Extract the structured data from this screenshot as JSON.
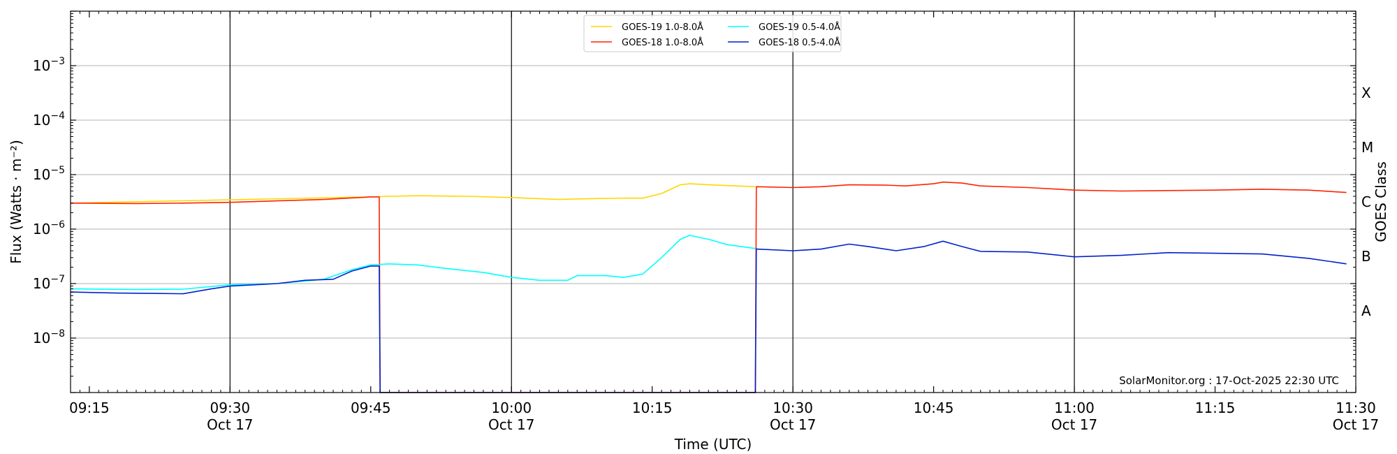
{
  "chart_data": {
    "type": "line",
    "xlabel": "Time (UTC)",
    "ylabel": "Flux (Watts · m⁻²)",
    "ylabel_right": "GOES Class",
    "y_scale": "log",
    "ylim": [
      1e-09,
      0.01
    ],
    "xlim": [
      "09:13",
      "11:30"
    ],
    "grid": "horizontal lines at decades; vertical lines at half hours",
    "legend_position": "top-center",
    "credit": "SolarMonitor.org : 17-Oct-2025 22:30 UTC",
    "y_ticks": [
      {
        "value": 1e-08,
        "base": "10",
        "exp": "−8"
      },
      {
        "value": 1e-07,
        "base": "10",
        "exp": "−7"
      },
      {
        "value": 1e-06,
        "base": "10",
        "exp": "−6"
      },
      {
        "value": 1e-05,
        "base": "10",
        "exp": "−5"
      },
      {
        "value": 0.0001,
        "base": "10",
        "exp": "−4"
      },
      {
        "value": 0.001,
        "base": "10",
        "exp": "−3"
      }
    ],
    "x_ticks": [
      {
        "time": "09:15",
        "label": "09:15",
        "date": ""
      },
      {
        "time": "09:30",
        "label": "09:30",
        "date": "Oct 17"
      },
      {
        "time": "09:45",
        "label": "09:45",
        "date": ""
      },
      {
        "time": "10:00",
        "label": "10:00",
        "date": "Oct 17"
      },
      {
        "time": "10:15",
        "label": "10:15",
        "date": ""
      },
      {
        "time": "10:30",
        "label": "10:30",
        "date": "Oct 17"
      },
      {
        "time": "10:45",
        "label": "10:45",
        "date": ""
      },
      {
        "time": "11:00",
        "label": "11:00",
        "date": "Oct 17"
      },
      {
        "time": "11:15",
        "label": "11:15",
        "date": ""
      },
      {
        "time": "11:30",
        "label": "11:30",
        "date": "Oct 17"
      }
    ],
    "vertical_lines": [
      "09:30",
      "10:00",
      "10:30",
      "11:00"
    ],
    "goes_classes": [
      {
        "label": "X",
        "value": 0.000316
      },
      {
        "label": "M",
        "value": 3.16e-05
      },
      {
        "label": "C",
        "value": 3.16e-06
      },
      {
        "label": "B",
        "value": 3.16e-07
      },
      {
        "label": "A",
        "value": 3.16e-08
      }
    ],
    "series": [
      {
        "name": "GOES-19 1.0-8.0Å",
        "color": "#ffd700",
        "points": [
          [
            "09:13",
            3e-06
          ],
          [
            "09:45",
            3.9e-06
          ],
          [
            "09:47",
            4e-06
          ],
          [
            "09:50",
            4.1e-06
          ],
          [
            "09:55",
            4e-06
          ],
          [
            "10:00",
            3.8e-06
          ],
          [
            "10:05",
            3.5e-06
          ],
          [
            "10:08",
            3.6e-06
          ],
          [
            "10:12",
            3.7e-06
          ],
          [
            "10:14",
            3.7e-06
          ],
          [
            "10:16",
            4.5e-06
          ],
          [
            "10:18",
            6.5e-06
          ],
          [
            "10:19",
            6.8e-06
          ],
          [
            "10:22",
            6.4e-06
          ],
          [
            "10:26",
            6e-06
          ]
        ]
      },
      {
        "name": "GOES-18 1.0-8.0Å",
        "color": "#ff2200",
        "points": [
          [
            "09:13",
            3e-06
          ],
          [
            "09:20",
            2.95e-06
          ],
          [
            "09:25",
            3e-06
          ],
          [
            "09:30",
            3.1e-06
          ],
          [
            "09:35",
            3.3e-06
          ],
          [
            "09:40",
            3.5e-06
          ],
          [
            "09:45",
            3.9e-06
          ],
          [
            "09:45.9",
            3.9e-06
          ],
          [
            "09:46",
            1e-09
          ],
          [
            "10:26",
            1e-09
          ],
          [
            "10:26.1",
            6e-06
          ],
          [
            "10:30",
            5.8e-06
          ],
          [
            "10:33",
            6e-06
          ],
          [
            "10:36",
            6.5e-06
          ],
          [
            "10:40",
            6.4e-06
          ],
          [
            "10:42",
            6.2e-06
          ],
          [
            "10:45",
            6.8e-06
          ],
          [
            "10:46",
            7.3e-06
          ],
          [
            "10:48",
            7e-06
          ],
          [
            "10:50",
            6.2e-06
          ],
          [
            "10:55",
            5.8e-06
          ],
          [
            "11:00",
            5.2e-06
          ],
          [
            "11:05",
            5e-06
          ],
          [
            "11:10",
            5.1e-06
          ],
          [
            "11:15",
            5.2e-06
          ],
          [
            "11:20",
            5.4e-06
          ],
          [
            "11:25",
            5.2e-06
          ],
          [
            "11:29",
            4.7e-06
          ]
        ]
      },
      {
        "name": "GOES-19 0.5-4.0Å",
        "color": "#00ffff",
        "points": [
          [
            "09:13",
            8e-08
          ],
          [
            "09:20",
            7.8e-08
          ],
          [
            "09:25",
            7.9e-08
          ],
          [
            "09:30",
            9.5e-08
          ],
          [
            "09:35",
            1e-07
          ],
          [
            "09:40",
            1.2e-07
          ],
          [
            "09:43",
            1.8e-07
          ],
          [
            "09:45",
            2.2e-07
          ],
          [
            "09:47",
            2.3e-07
          ],
          [
            "09:50",
            2.2e-07
          ],
          [
            "09:53",
            1.9e-07
          ],
          [
            "09:57",
            1.6e-07
          ],
          [
            "10:00",
            1.3e-07
          ],
          [
            "10:03",
            1.15e-07
          ],
          [
            "10:06",
            1.15e-07
          ],
          [
            "10:07",
            1.4e-07
          ],
          [
            "10:10",
            1.4e-07
          ],
          [
            "10:12",
            1.3e-07
          ],
          [
            "10:14",
            1.5e-07
          ],
          [
            "10:16",
            3e-07
          ],
          [
            "10:18",
            6.5e-07
          ],
          [
            "10:19",
            7.7e-07
          ],
          [
            "10:21",
            6.5e-07
          ],
          [
            "10:23",
            5.2e-07
          ],
          [
            "10:26",
            4.4e-07
          ]
        ]
      },
      {
        "name": "GOES-18 0.5-4.0Å",
        "color": "#0022cc",
        "points": [
          [
            "09:13",
            7e-08
          ],
          [
            "09:18",
            6.7e-08
          ],
          [
            "09:22",
            6.6e-08
          ],
          [
            "09:25",
            6.5e-08
          ],
          [
            "09:28",
            8e-08
          ],
          [
            "09:30",
            9e-08
          ],
          [
            "09:35",
            1e-07
          ],
          [
            "09:38",
            1.15e-07
          ],
          [
            "09:41",
            1.2e-07
          ],
          [
            "09:43",
            1.7e-07
          ],
          [
            "09:45",
            2.1e-07
          ],
          [
            "09:45.9",
            2.1e-07
          ],
          [
            "09:46",
            1e-09
          ],
          [
            "10:26",
            1e-09
          ],
          [
            "10:26.1",
            4.3e-07
          ],
          [
            "10:30",
            4e-07
          ],
          [
            "10:33",
            4.3e-07
          ],
          [
            "10:36",
            5.3e-07
          ],
          [
            "10:38",
            4.8e-07
          ],
          [
            "10:41",
            4e-07
          ],
          [
            "10:44",
            4.8e-07
          ],
          [
            "10:46",
            6e-07
          ],
          [
            "10:48",
            4.8e-07
          ],
          [
            "10:50",
            3.9e-07
          ],
          [
            "10:55",
            3.8e-07
          ],
          [
            "11:00",
            3.1e-07
          ],
          [
            "11:05",
            3.3e-07
          ],
          [
            "11:10",
            3.7e-07
          ],
          [
            "11:15",
            3.6e-07
          ],
          [
            "11:20",
            3.5e-07
          ],
          [
            "11:25",
            2.9e-07
          ],
          [
            "11:29",
            2.3e-07
          ]
        ]
      }
    ]
  }
}
